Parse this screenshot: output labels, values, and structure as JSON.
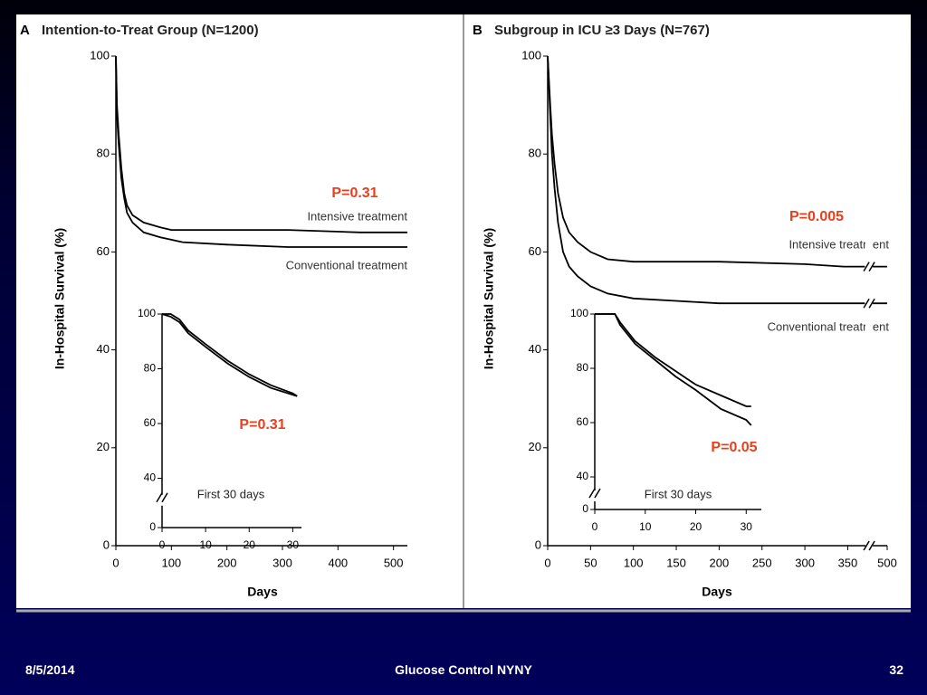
{
  "chart_data": [
    {
      "type": "line",
      "panel": "A",
      "title": "Intention-to-Treat Group (N=1200)",
      "y_label": "In-Hospital Survival (%)",
      "x_label": "Days",
      "xlim": [
        0,
        525
      ],
      "xticks": [
        0,
        100,
        200,
        300,
        400,
        500
      ],
      "ylim": [
        0,
        100
      ],
      "yticks": [
        0,
        20,
        40,
        60,
        80,
        100
      ],
      "annotations": [
        "P=0.31"
      ],
      "x": [
        0,
        2,
        5,
        10,
        15,
        20,
        30,
        50,
        80,
        100,
        120,
        200,
        310,
        440,
        525
      ],
      "series": [
        {
          "name": "Intensive treatment",
          "color": "#000000",
          "values": [
            100,
            90,
            84,
            77,
            72,
            69.5,
            67.5,
            66,
            65,
            64.5,
            64.5,
            64.5,
            64.5,
            64,
            64
          ]
        },
        {
          "name": "Conventional treatment",
          "color": "#000000",
          "values": [
            100,
            88,
            82,
            75,
            71,
            68,
            66,
            64,
            63,
            62.5,
            62,
            61.5,
            61,
            61,
            61
          ]
        }
      ]
    },
    {
      "type": "line",
      "title": "First 30 days",
      "xlim": [
        0,
        32
      ],
      "xticks": [
        0,
        10,
        20,
        30
      ],
      "ylim": [
        0,
        100
      ],
      "ybreak": [
        10,
        32
      ],
      "yticks": [
        0,
        40,
        60,
        80,
        100
      ],
      "annotations": [
        "P=0.31"
      ],
      "x": [
        0,
        2,
        4,
        6,
        10,
        15,
        20,
        25,
        30,
        31
      ],
      "series": [
        {
          "name": "Intensive treatment",
          "color": "#000000",
          "values": [
            100,
            100,
            98,
            94,
            89,
            83,
            78,
            74,
            71,
            70
          ]
        },
        {
          "name": "Conventional treatment",
          "color": "#000000",
          "values": [
            100,
            99,
            97,
            93,
            88,
            82,
            77,
            73,
            70.5,
            70
          ]
        }
      ]
    },
    {
      "type": "line",
      "panel": "B",
      "title": "Subgroup in ICU ≥3 Days (N=767)",
      "y_label": "In-Hospital Survival (%)",
      "x_label": "Days",
      "xlim": [
        0,
        500
      ],
      "xbreak": [
        375,
        479
      ],
      "xticks": [
        0,
        50,
        100,
        150,
        200,
        250,
        300,
        350,
        500
      ],
      "ylim": [
        0,
        100
      ],
      "yticks": [
        0,
        20,
        40,
        60,
        80,
        100
      ],
      "annotations": [
        "P=0.005"
      ],
      "x": [
        0,
        3,
        5,
        8,
        12,
        18,
        25,
        35,
        50,
        70,
        100,
        150,
        200,
        300,
        345,
        370,
        480,
        500
      ],
      "series": [
        {
          "name": "Intensive treatment",
          "color": "#000000",
          "values": [
            100,
            90,
            84,
            78,
            72,
            67,
            64,
            62,
            60,
            58.5,
            58,
            58,
            58,
            57.5,
            57,
            57,
            57,
            57
          ]
        },
        {
          "name": "Conventional treatment",
          "color": "#000000",
          "values": [
            100,
            88,
            80,
            73,
            66,
            60,
            57,
            55,
            53,
            51.5,
            50.5,
            50,
            49.5,
            49.5,
            49.5,
            49.5,
            49.5,
            49.5
          ]
        }
      ]
    },
    {
      "type": "line",
      "title": "First 30 days",
      "xlim": [
        0,
        33
      ],
      "xticks": [
        0,
        10,
        20,
        30
      ],
      "ylim": [
        0,
        100
      ],
      "ybreak": [
        5,
        33
      ],
      "yticks": [
        0,
        40,
        60,
        80,
        100
      ],
      "annotations": [
        "P=0.05"
      ],
      "x": [
        0,
        4,
        5,
        8,
        12,
        16,
        20,
        25,
        30,
        31
      ],
      "series": [
        {
          "name": "Intensive treatment",
          "color": "#000000",
          "values": [
            100,
            100,
            97,
            90,
            84,
            79,
            74,
            70,
            66,
            66
          ]
        },
        {
          "name": "Conventional treatment",
          "color": "#000000",
          "values": [
            100,
            100,
            96,
            89,
            83,
            77,
            72,
            65,
            61,
            59
          ]
        }
      ]
    }
  ],
  "footer": {
    "date": "8/5/2014",
    "title": "Glucose Control NYNY",
    "page": "32"
  }
}
